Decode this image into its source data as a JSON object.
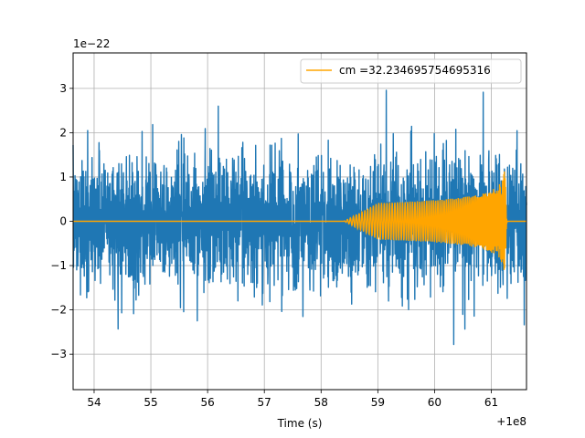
{
  "chart_data": {
    "type": "line",
    "title": "",
    "xlabel": "Time (s)",
    "ylabel": "",
    "x_offset_label": "+1e8",
    "y_scale_label": "1e−22",
    "xlim": [
      53.63,
      61.62
    ],
    "ylim": [
      -3.8,
      3.8
    ],
    "x_ticks": [
      54,
      55,
      56,
      57,
      58,
      59,
      60,
      61
    ],
    "x_tick_labels": [
      "54",
      "55",
      "56",
      "57",
      "58",
      "59",
      "60",
      "61"
    ],
    "y_ticks": [
      -3,
      -2,
      -1,
      0,
      1,
      2,
      3
    ],
    "y_tick_labels": [
      "−3",
      "−2",
      "−1",
      "0",
      "1",
      "2",
      "3"
    ],
    "grid": true,
    "legend": {
      "placement": "top-right",
      "entries": [
        "cm =32.234695754695316"
      ]
    },
    "series": [
      {
        "kind": "noise",
        "color": "#1f77b4",
        "x_range": [
          53.63,
          61.62
        ],
        "typical_amplitude": 1.35,
        "peak_amplitude": 3.5
      },
      {
        "name": "cm =32.234695754695316",
        "kind": "chirp",
        "color": "#ffa500",
        "onset_x": 58.4,
        "merger_x": 61.25,
        "peak_amplitude": 1.35,
        "end_x": 61.62
      }
    ]
  }
}
